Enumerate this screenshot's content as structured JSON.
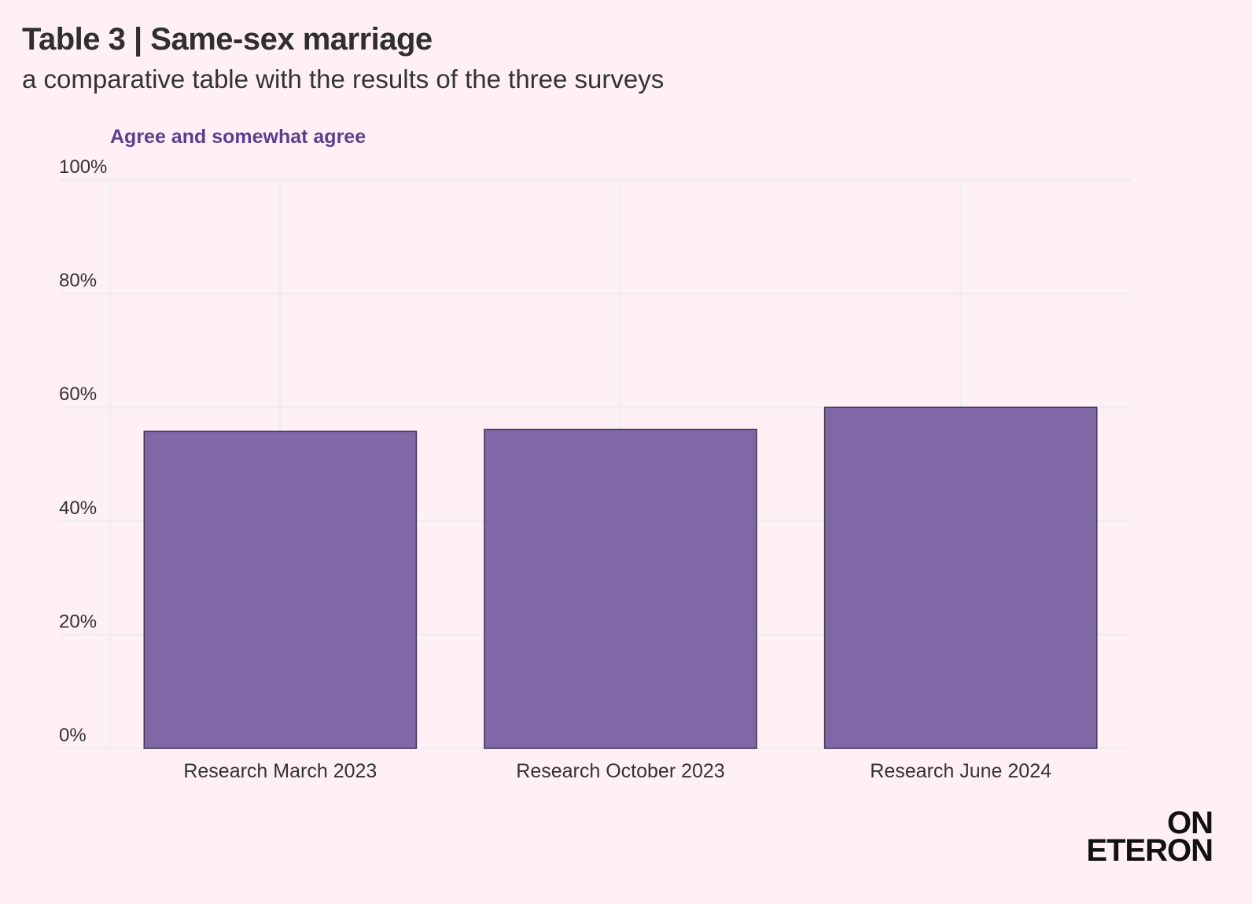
{
  "header": {
    "title": "Table 3 | Same-sex marriage",
    "subtitle": "a comparative table with the results of the three surveys"
  },
  "logo": {
    "line1": "ON",
    "line2": "ETERON"
  },
  "colors": {
    "background": "#fff0f6",
    "bar_fill": "#7f68a5",
    "bar_stroke": "#3f3550",
    "legend_text": "#5b3f8f",
    "grid": "#f0eef1",
    "text": "#333333"
  },
  "chart_data": {
    "type": "bar",
    "title": "Table 3 | Same-sex marriage",
    "subtitle": "a comparative table with the results of the three surveys",
    "series_label": "Agree and somewhat agree",
    "categories": [
      "Research March 2023",
      "Research October 2023",
      "Research June 2024"
    ],
    "series": [
      {
        "name": "Agree and somewhat agree",
        "values": [
          55.8,
          56.1,
          60.0
        ]
      }
    ],
    "y_ticks": [
      0,
      20,
      40,
      60,
      80,
      100
    ],
    "y_tick_labels": [
      "0%",
      "20%",
      "40%",
      "60%",
      "80%",
      "100%"
    ],
    "ylim": [
      0,
      100
    ],
    "xlabel": "",
    "ylabel": "",
    "grid": true
  }
}
